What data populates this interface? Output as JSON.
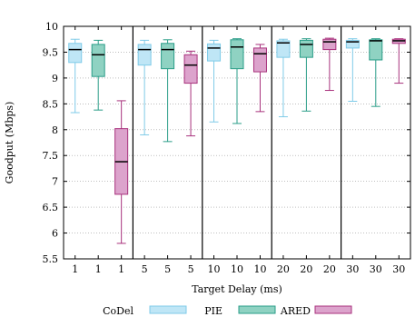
{
  "chart_data": {
    "type": "box",
    "title": "",
    "xlabel": "Target Delay (ms)",
    "ylabel": "Goodput (Mbps)",
    "ylim": [
      5.5,
      10
    ],
    "yticks": [
      "5.5",
      "6",
      "6.5",
      "7",
      "7.5",
      "8",
      "8.5",
      "9",
      "9.5",
      "10"
    ],
    "ytick_values": [
      5.5,
      6,
      6.5,
      7,
      7.5,
      8,
      8.5,
      9,
      9.5,
      10
    ],
    "grid": "horizontal dotted",
    "legend_position": "bottom",
    "categories": [
      "1",
      "1",
      "1",
      "5",
      "5",
      "5",
      "10",
      "10",
      "10",
      "20",
      "20",
      "20",
      "30",
      "30",
      "30"
    ],
    "groups": [
      "1",
      "5",
      "10",
      "20",
      "30"
    ],
    "series": [
      {
        "name": "CoDel",
        "color": "#bfe6f6",
        "stroke": "#7fcbe8",
        "boxes": [
          {
            "group": "1",
            "min": 8.33,
            "q1": 9.3,
            "median": 9.55,
            "q3": 9.67,
            "max": 9.75
          },
          {
            "group": "5",
            "min": 7.9,
            "q1": 9.25,
            "median": 9.55,
            "q3": 9.65,
            "max": 9.73
          },
          {
            "group": "10",
            "min": 8.15,
            "q1": 9.33,
            "median": 9.58,
            "q3": 9.66,
            "max": 9.73
          },
          {
            "group": "20",
            "min": 8.25,
            "q1": 9.4,
            "median": 9.68,
            "q3": 9.72,
            "max": 9.75
          },
          {
            "group": "30",
            "min": 8.55,
            "q1": 9.58,
            "median": 9.7,
            "q3": 9.73,
            "max": 9.76
          }
        ]
      },
      {
        "name": "PIE",
        "color": "#8fd2c2",
        "stroke": "#2a9d88",
        "boxes": [
          {
            "group": "1",
            "min": 8.38,
            "q1": 9.03,
            "median": 9.45,
            "q3": 9.65,
            "max": 9.73
          },
          {
            "group": "5",
            "min": 7.77,
            "q1": 9.18,
            "median": 9.55,
            "q3": 9.67,
            "max": 9.74
          },
          {
            "group": "10",
            "min": 8.12,
            "q1": 9.18,
            "median": 9.6,
            "q3": 9.74,
            "max": 9.76
          },
          {
            "group": "20",
            "min": 8.36,
            "q1": 9.4,
            "median": 9.65,
            "q3": 9.73,
            "max": 9.76
          },
          {
            "group": "30",
            "min": 8.45,
            "q1": 9.35,
            "median": 9.72,
            "q3": 9.74,
            "max": 9.76
          }
        ]
      },
      {
        "name": "ARED",
        "color": "#dca3cc",
        "stroke": "#a8317c",
        "boxes": [
          {
            "group": "1",
            "min": 5.8,
            "q1": 6.75,
            "median": 7.38,
            "q3": 8.02,
            "max": 8.56
          },
          {
            "group": "5",
            "min": 7.88,
            "q1": 8.9,
            "median": 9.25,
            "q3": 9.45,
            "max": 9.52
          },
          {
            "group": "10",
            "min": 8.35,
            "q1": 9.12,
            "median": 9.47,
            "q3": 9.58,
            "max": 9.65
          },
          {
            "group": "20",
            "min": 8.76,
            "q1": 9.55,
            "median": 9.7,
            "q3": 9.75,
            "max": 9.77
          },
          {
            "group": "30",
            "min": 8.9,
            "q1": 9.67,
            "median": 9.72,
            "q3": 9.75,
            "max": 9.76
          }
        ]
      }
    ]
  }
}
